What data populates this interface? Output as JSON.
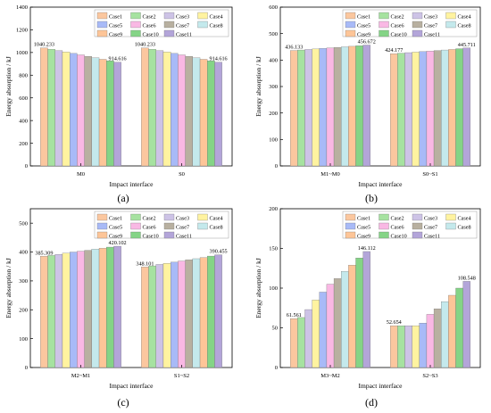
{
  "colors": [
    "#fbc79f",
    "#a6e2a0",
    "#cdc3e6",
    "#fff3a0",
    "#a8baf7",
    "#f9b8e4",
    "#b8b0a0",
    "#c4e9ec",
    "#fdc598",
    "#84d486",
    "#b3a5d9"
  ],
  "chart_data": [
    {
      "type": "bar",
      "panel_label": "(a)",
      "xlabel": "Impact interface",
      "ylabel": "Energy absorption / kJ",
      "ylim": [
        0,
        1400
      ],
      "yticks": [
        0,
        200,
        400,
        600,
        800,
        1000,
        1200,
        1400
      ],
      "grid": false,
      "legend": "top-right",
      "categories": [
        "M0",
        "S0"
      ],
      "series": [
        {
          "name": "Case1",
          "values": [
            1040.233,
            1040.233
          ]
        },
        {
          "name": "Case2",
          "values": [
            1028,
            1028
          ]
        },
        {
          "name": "Case3",
          "values": [
            1016,
            1016
          ]
        },
        {
          "name": "Case4",
          "values": [
            1004,
            1004
          ]
        },
        {
          "name": "Case5",
          "values": [
            992,
            992
          ]
        },
        {
          "name": "Case6",
          "values": [
            979,
            979
          ]
        },
        {
          "name": "Case7",
          "values": [
            966,
            966
          ]
        },
        {
          "name": "Case8",
          "values": [
            953,
            953
          ]
        },
        {
          "name": "Case9",
          "values": [
            940,
            940
          ]
        },
        {
          "name": "Case10",
          "values": [
            927,
            927
          ]
        },
        {
          "name": "Case11",
          "values": [
            914.616,
            914.616
          ]
        }
      ],
      "annotations": [
        {
          "text": "1040.233",
          "category": 0,
          "series": 0
        },
        {
          "text": "914.616",
          "category": 0,
          "series": 10
        },
        {
          "text": "1040.233",
          "category": 1,
          "series": 0
        },
        {
          "text": "914.616",
          "category": 1,
          "series": 10
        }
      ]
    },
    {
      "type": "bar",
      "panel_label": "(b)",
      "xlabel": "Impact interface",
      "ylabel": "Energy absorption / kJ",
      "ylim": [
        0,
        600
      ],
      "yticks": [
        0,
        100,
        200,
        300,
        400,
        500,
        600
      ],
      "grid": false,
      "legend": "top-right",
      "categories": [
        "M1~M0",
        "S0~S1"
      ],
      "series": [
        {
          "name": "Case1",
          "values": [
            436.133,
            424.177
          ]
        },
        {
          "name": "Case2",
          "values": [
            438,
            426
          ]
        },
        {
          "name": "Case3",
          "values": [
            440,
            428
          ]
        },
        {
          "name": "Case4",
          "values": [
            442,
            430
          ]
        },
        {
          "name": "Case5",
          "values": [
            444,
            432
          ]
        },
        {
          "name": "Case6",
          "values": [
            446,
            434
          ]
        },
        {
          "name": "Case7",
          "values": [
            448,
            436
          ]
        },
        {
          "name": "Case8",
          "values": [
            450,
            438
          ]
        },
        {
          "name": "Case9",
          "values": [
            452,
            440
          ]
        },
        {
          "name": "Case10",
          "values": [
            454,
            443
          ]
        },
        {
          "name": "Case11",
          "values": [
            456.672,
            445.711
          ]
        }
      ],
      "annotations": [
        {
          "text": "436.133",
          "category": 0,
          "series": 0
        },
        {
          "text": "456.672",
          "category": 0,
          "series": 10
        },
        {
          "text": "424.177",
          "category": 1,
          "series": 0
        },
        {
          "text": "445.711",
          "category": 1,
          "series": 10
        }
      ]
    },
    {
      "type": "bar",
      "panel_label": "(c)",
      "xlabel": "Impact interface",
      "ylabel": "Energy absorption / kJ",
      "ylim": [
        0,
        550
      ],
      "yticks": [
        0,
        100,
        200,
        300,
        400,
        500
      ],
      "grid": false,
      "legend": "top-right",
      "categories": [
        "M2~M1",
        "S1~S2"
      ],
      "series": [
        {
          "name": "Case1",
          "values": [
            385.309,
            348.101
          ]
        },
        {
          "name": "Case2",
          "values": [
            388,
            352
          ]
        },
        {
          "name": "Case3",
          "values": [
            392,
            357
          ]
        },
        {
          "name": "Case4",
          "values": [
            396,
            361
          ]
        },
        {
          "name": "Case5",
          "values": [
            400,
            365
          ]
        },
        {
          "name": "Case6",
          "values": [
            403,
            369
          ]
        },
        {
          "name": "Case7",
          "values": [
            406,
            373
          ]
        },
        {
          "name": "Case8",
          "values": [
            410,
            377
          ]
        },
        {
          "name": "Case9",
          "values": [
            413,
            381
          ]
        },
        {
          "name": "Case10",
          "values": [
            417,
            386
          ]
        },
        {
          "name": "Case11",
          "values": [
            420.102,
            390.455
          ]
        }
      ],
      "annotations": [
        {
          "text": "385.309",
          "category": 0,
          "series": 0
        },
        {
          "text": "420.102",
          "category": 0,
          "series": 10
        },
        {
          "text": "348.101",
          "category": 1,
          "series": 0
        },
        {
          "text": "390.455",
          "category": 1,
          "series": 10
        }
      ]
    },
    {
      "type": "bar",
      "panel_label": "(d)",
      "xlabel": "Impact interface",
      "ylabel": "Energy absorption / kJ",
      "ylim": [
        0,
        200
      ],
      "yticks": [
        0,
        50,
        100,
        150,
        200
      ],
      "grid": false,
      "legend": "top-right",
      "categories": [
        "M3~M2",
        "S2~S3"
      ],
      "series": [
        {
          "name": "Case1",
          "values": [
            61.561,
            52.654
          ]
        },
        {
          "name": "Case2",
          "values": [
            63,
            52.654
          ]
        },
        {
          "name": "Case3",
          "values": [
            73,
            52.654
          ]
        },
        {
          "name": "Case4",
          "values": [
            85,
            52.654
          ]
        },
        {
          "name": "Case5",
          "values": [
            95,
            56
          ]
        },
        {
          "name": "Case6",
          "values": [
            105,
            67
          ]
        },
        {
          "name": "Case7",
          "values": [
            112,
            74
          ]
        },
        {
          "name": "Case8",
          "values": [
            121,
            83
          ]
        },
        {
          "name": "Case9",
          "values": [
            129,
            91
          ]
        },
        {
          "name": "Case10",
          "values": [
            138,
            100
          ]
        },
        {
          "name": "Case11",
          "values": [
            146.112,
            108.548
          ]
        }
      ],
      "annotations": [
        {
          "text": "61.561",
          "category": 0,
          "series": 0
        },
        {
          "text": "146.112",
          "category": 0,
          "series": 10
        },
        {
          "text": "52.654",
          "category": 1,
          "series": 0
        },
        {
          "text": "108.548",
          "category": 1,
          "series": 10
        }
      ]
    }
  ]
}
